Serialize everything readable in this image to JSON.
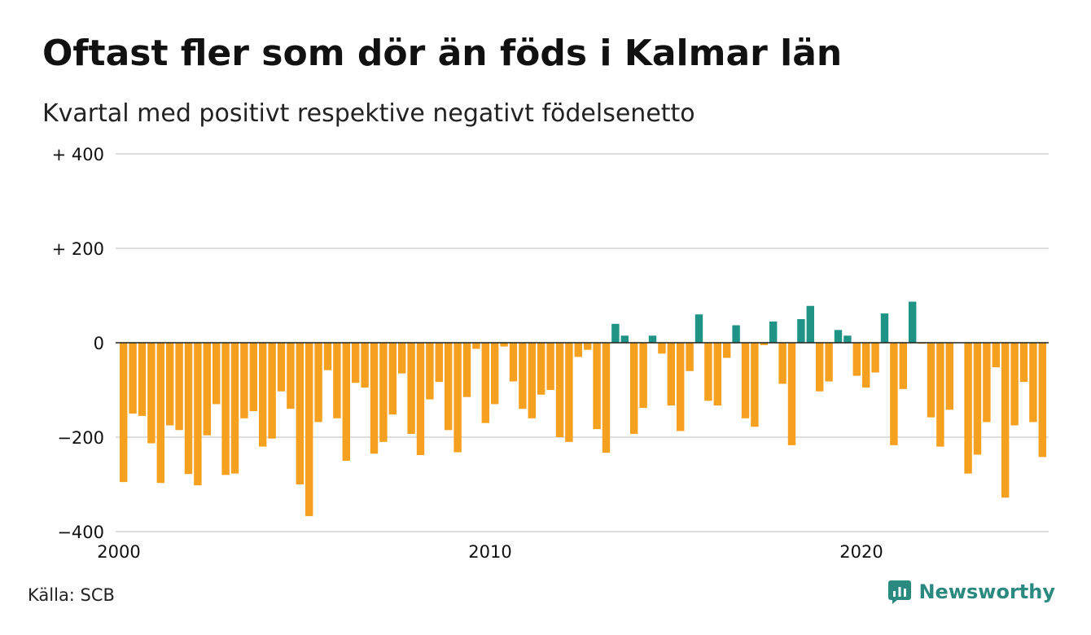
{
  "title": "Oftast fler som dör än föds i Kalmar län",
  "subtitle": "Kvartal med positivt respektive negativt födelsenetto",
  "source": "Källa: SCB",
  "brand": "Newsworthy",
  "colors": {
    "positive": "#1f9386",
    "negative": "#f5a01f",
    "grid": "#dddddd",
    "zero_line": "#222222",
    "brand": "#2b8a80"
  },
  "chart_data": {
    "type": "bar",
    "ylim": [
      -400,
      400
    ],
    "yticks": [
      {
        "value": 400,
        "label": "+ 400"
      },
      {
        "value": 200,
        "label": "+ 200"
      },
      {
        "value": 0,
        "label": "0"
      },
      {
        "value": -200,
        "label": "−200"
      },
      {
        "value": -400,
        "label": "−400"
      }
    ],
    "xticks": [
      {
        "value": 2000,
        "label": "2000"
      },
      {
        "value": 2010,
        "label": "2010"
      },
      {
        "value": 2020,
        "label": "2020"
      }
    ],
    "x_start": 2000,
    "x_step": 0.25,
    "grid": true,
    "values": [
      -295,
      -150,
      -155,
      -213,
      -297,
      -175,
      -185,
      -278,
      -302,
      -196,
      -130,
      -280,
      -277,
      -160,
      -145,
      -220,
      -203,
      -103,
      -140,
      -300,
      -367,
      -168,
      -58,
      -160,
      -250,
      -85,
      -95,
      -235,
      -210,
      -152,
      -65,
      -193,
      -238,
      -120,
      -83,
      -185,
      -232,
      -115,
      -13,
      -170,
      -130,
      -8,
      -82,
      -140,
      -160,
      -110,
      -100,
      -200,
      -210,
      -30,
      -15,
      -183,
      -233,
      40,
      15,
      -193,
      -138,
      15,
      -23,
      -133,
      -187,
      -60,
      60,
      -123,
      -133,
      -32,
      37,
      -160,
      -178,
      -5,
      45,
      -87,
      -217,
      50,
      78,
      -103,
      -82,
      27,
      15,
      -70,
      -95,
      -63,
      62,
      -217,
      -98,
      87,
      -2,
      -158,
      -220,
      -142,
      0,
      -277,
      -237,
      -168,
      -52,
      -328,
      -175,
      -83,
      -168,
      -242
    ]
  }
}
